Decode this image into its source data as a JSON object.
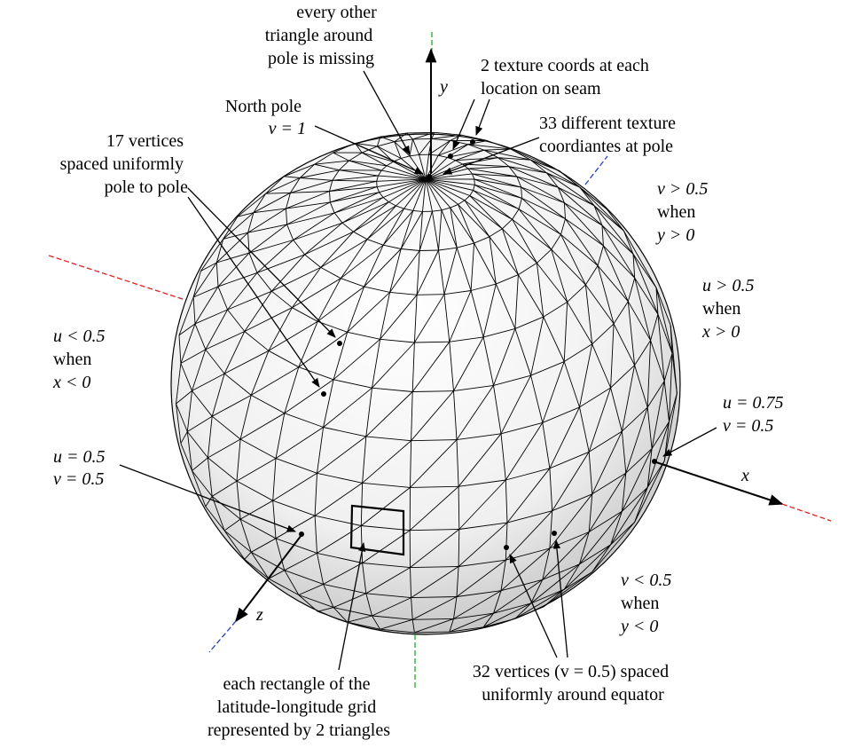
{
  "axes": {
    "x": "x",
    "y": "y",
    "z": "z",
    "colors": {
      "x": "#e02020",
      "y": "#22aa22",
      "z": "#2040c0"
    }
  },
  "sphere": {
    "latitude_vertices": 17,
    "longitude_vertices": 32,
    "fill": "#f2f2f2",
    "shade": "#c8c8c8",
    "edge": "#000000"
  },
  "labels": {
    "triangle_missing": [
      "every other",
      "triangle around",
      "pole is missing"
    ],
    "seam_coords": [
      "2 texture coords at each",
      "location on seam"
    ],
    "north_pole": [
      "North pole",
      "v = 1"
    ],
    "pole_coords": [
      "33 different texture",
      "coordiantes at pole"
    ],
    "vertices_pole_to_pole": [
      "17 vertices",
      "spaced uniformly",
      "pole to pole"
    ],
    "v_greater": [
      "v > 0.5",
      "when",
      "y > 0"
    ],
    "u_greater": [
      "u > 0.5",
      "when",
      "x > 0"
    ],
    "u_less": [
      "u < 0.5",
      "when",
      "x < 0"
    ],
    "u075": [
      "u = 0.75",
      "v = 0.5"
    ],
    "u05": [
      "u = 0.5",
      "v = 0.5"
    ],
    "v_less": [
      "v < 0.5",
      "when",
      "y < 0"
    ],
    "rectangle_note": [
      "each rectangle of the",
      "latitude-longitude grid",
      "represented by 2 triangles"
    ],
    "equator_note": [
      "32 vertices (v = 0.5) spaced",
      "uniformly around equator"
    ]
  }
}
